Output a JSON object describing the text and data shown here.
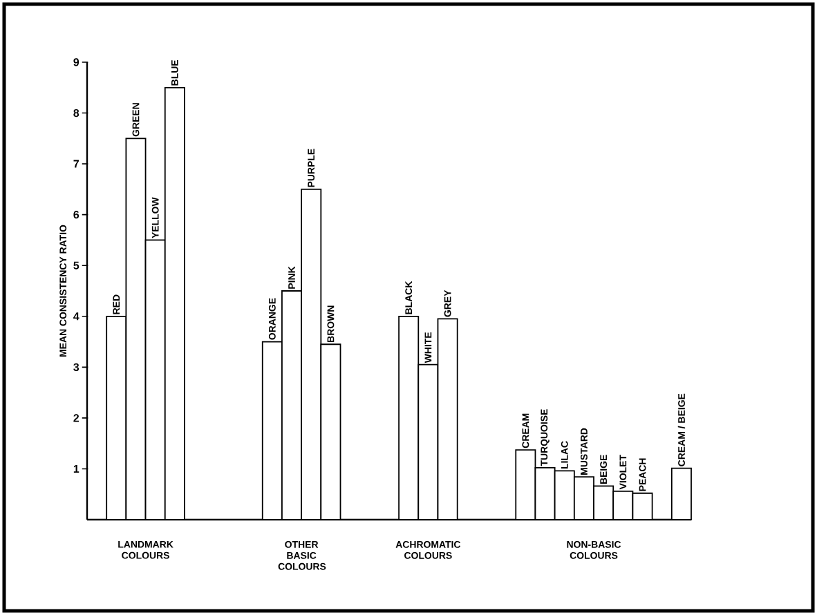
{
  "chart_data": {
    "type": "bar",
    "ylabel": "MEAN CONSISTENCY RATIO",
    "categories": [
      null,
      "RED",
      "GREEN",
      "YELLOW",
      "BLUE",
      null,
      null,
      null,
      null,
      "ORANGE",
      "PINK",
      "PURPLE",
      "BROWN",
      null,
      null,
      null,
      "BLACK",
      "WHITE",
      "GREY",
      null,
      null,
      null,
      "CREAM",
      "TURQUOISE",
      "LILAC",
      "MUSTARD",
      "BEIGE",
      "VIOLET",
      "PEACH",
      null,
      "CREAM / BEIGE"
    ],
    "values": [
      null,
      4.0,
      7.5,
      5.5,
      8.5,
      null,
      null,
      null,
      null,
      3.5,
      4.5,
      6.5,
      3.45,
      null,
      null,
      null,
      4.0,
      3.05,
      3.95,
      null,
      null,
      null,
      1.37,
      1.02,
      0.96,
      0.84,
      0.66,
      0.56,
      0.52,
      null,
      1.01
    ],
    "color": "#ffffff",
    "ylim": [
      0,
      9
    ],
    "yticks": [
      1,
      2,
      3,
      4,
      5,
      6,
      7,
      8,
      9
    ],
    "annotations": [
      "LANDMARK COLOURS",
      "OTHER BASIC COLOURS",
      "ACHROMATIC COLOURS",
      "NON-BASIC COLOURS"
    ]
  }
}
